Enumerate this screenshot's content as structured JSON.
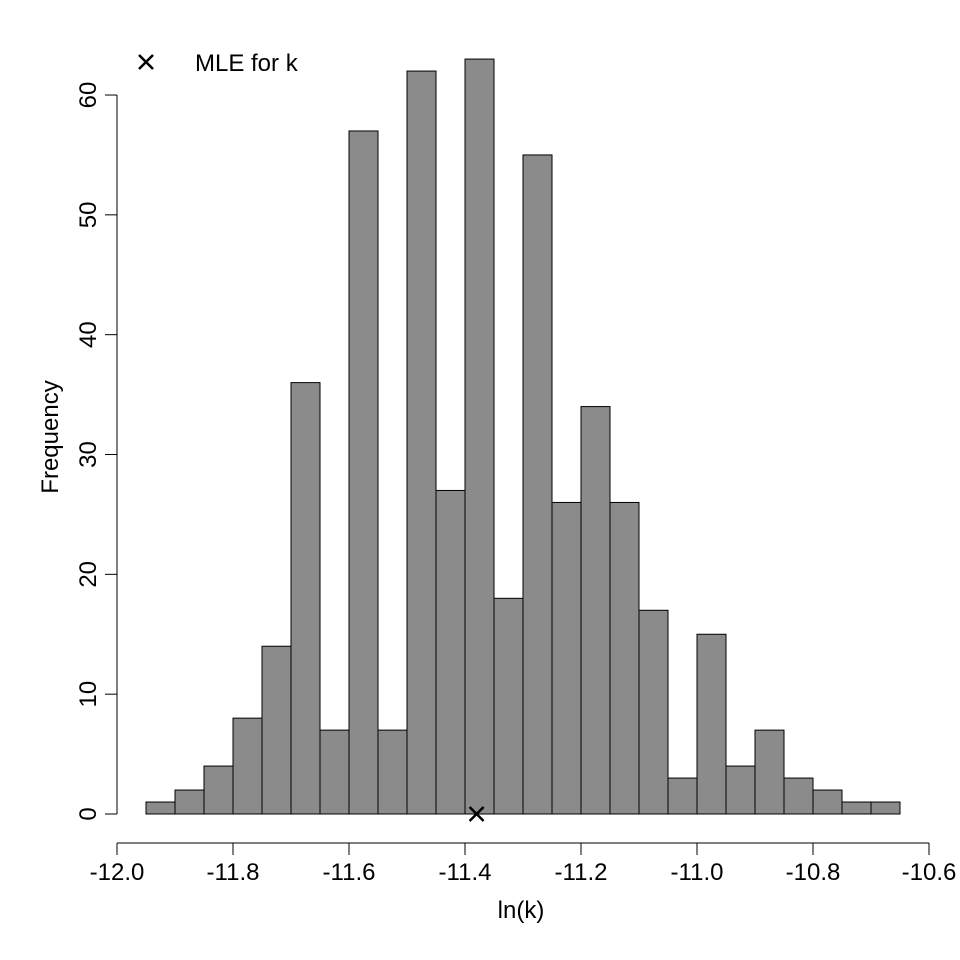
{
  "chart_data": {
    "type": "bar",
    "title": "",
    "xlabel": "ln(k)",
    "ylabel": "Frequency",
    "xlim": [
      -12.0,
      -10.6
    ],
    "ylim": [
      0,
      63
    ],
    "x_ticks": [
      "-12.0",
      "-11.8",
      "-11.6",
      "-11.4",
      "-11.2",
      "-11.0",
      "-10.8",
      "-10.6"
    ],
    "y_ticks": [
      "0",
      "10",
      "20",
      "30",
      "40",
      "50",
      "60"
    ],
    "bin_start": -11.95,
    "bin_width": 0.05,
    "values": [
      1,
      2,
      4,
      8,
      14,
      36,
      7,
      57,
      7,
      62,
      27,
      63,
      18,
      55,
      26,
      34,
      26,
      17,
      3,
      15,
      4,
      7,
      3,
      2,
      1,
      1
    ],
    "bar_color": "#8b8b8b",
    "grid": false,
    "marker": {
      "label": "MLE for k",
      "x": -11.38,
      "y": 0,
      "symbol": "×"
    },
    "legend": {
      "position": "top-left",
      "entries": [
        "MLE for k"
      ]
    }
  }
}
